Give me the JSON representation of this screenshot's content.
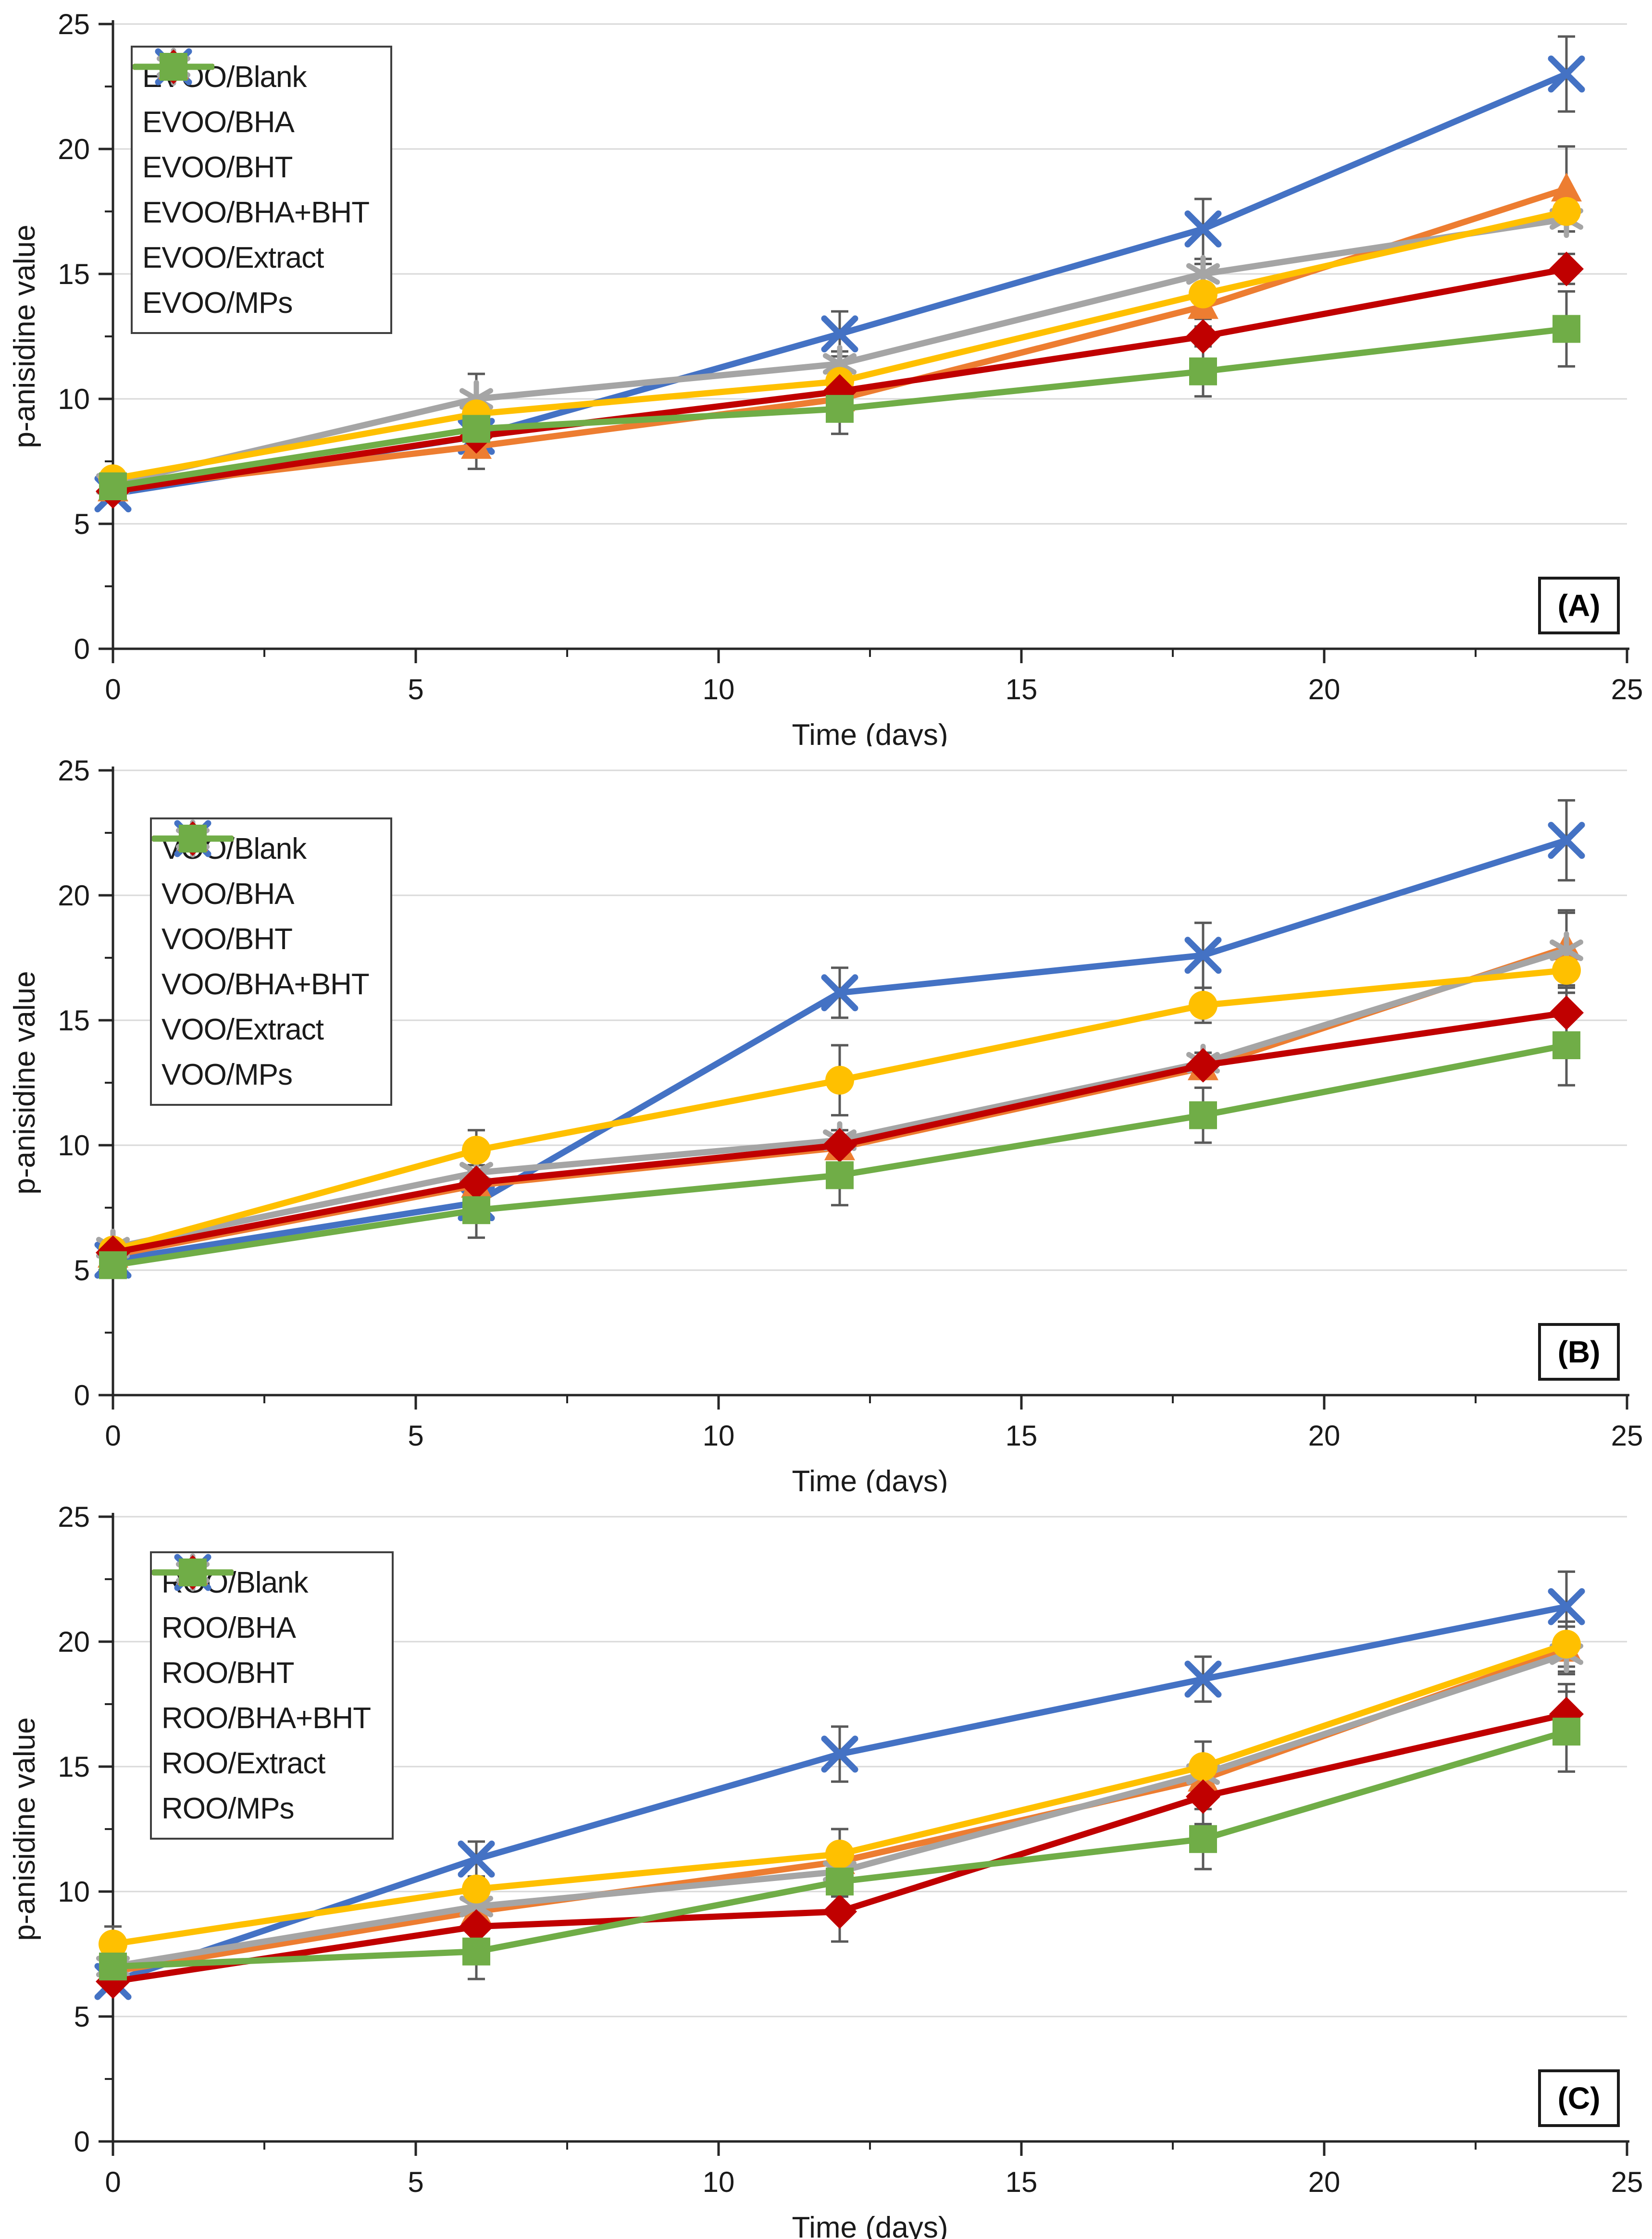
{
  "figure": {
    "x_axis_label": "Time (days)",
    "y_axis_label": "p-anisidine value",
    "x_ticks": [
      0,
      5,
      10,
      15,
      20,
      25
    ],
    "y_ticks": [
      0,
      5,
      10,
      15,
      20,
      25
    ],
    "axis_color": "#262626",
    "gridline_color": "#d9d9d9",
    "error_bar_color": "#595959",
    "grid": "horizontal-only",
    "legend_position": "top-left-inside",
    "series_colors": {
      "blank": "#4472C4",
      "bha": "#ED7D31",
      "bht": "#A5A5A5",
      "bha_bht": "#FFC000",
      "extract": "#C00000",
      "mps": "#70AD47"
    }
  },
  "chart_data": [
    {
      "type": "line",
      "panel_label": "(A)",
      "title": "",
      "xlabel": "Time (days)",
      "ylabel": "p-anisidine value",
      "xlim": [
        0,
        25
      ],
      "ylim": [
        0,
        25
      ],
      "x": [
        0,
        6,
        12,
        18,
        24
      ],
      "series": [
        {
          "name": "EVOO/Blank",
          "color": "#4472C4",
          "marker": "x",
          "values": [
            6.2,
            8.5,
            12.6,
            16.8,
            23.0
          ],
          "err": [
            0.2,
            0.3,
            0.9,
            1.2,
            1.5
          ]
        },
        {
          "name": "EVOO/BHA",
          "color": "#ED7D31",
          "marker": "triangle",
          "values": [
            6.4,
            8.1,
            10.0,
            13.7,
            18.4
          ],
          "err": [
            0.2,
            0.9,
            0.4,
            0.5,
            1.7
          ]
        },
        {
          "name": "EVOO/BHT",
          "color": "#A5A5A5",
          "marker": "asterisk",
          "values": [
            6.6,
            10.0,
            11.4,
            15.0,
            17.2
          ],
          "err": [
            0.3,
            1.0,
            0.5,
            0.4,
            0.5
          ]
        },
        {
          "name": "EVOO/BHA+BHT",
          "color": "#FFC000",
          "marker": "circle",
          "values": [
            6.8,
            9.4,
            10.7,
            14.2,
            17.5
          ],
          "err": [
            0.3,
            0.4,
            0.4,
            0.4,
            0.5
          ]
        },
        {
          "name": "EVOO/Extract",
          "color": "#C00000",
          "marker": "diamond",
          "values": [
            6.3,
            8.5,
            10.3,
            12.5,
            15.2
          ],
          "err": [
            0.2,
            0.3,
            0.3,
            0.4,
            0.6
          ]
        },
        {
          "name": "EVOO/MPs",
          "color": "#70AD47",
          "marker": "square",
          "values": [
            6.5,
            8.8,
            9.6,
            11.1,
            12.8
          ],
          "err": [
            0.3,
            0.4,
            1.0,
            1.0,
            1.5
          ]
        }
      ]
    },
    {
      "type": "line",
      "panel_label": "(B)",
      "title": "",
      "xlabel": "Time (days)",
      "ylabel": "p-anisidine value",
      "xlim": [
        0,
        25
      ],
      "ylim": [
        0,
        25
      ],
      "x": [
        0,
        6,
        12,
        18,
        24
      ],
      "series": [
        {
          "name": "VOO/Blank",
          "color": "#4472C4",
          "marker": "x",
          "values": [
            5.4,
            7.7,
            16.1,
            17.6,
            22.2
          ],
          "err": [
            0.2,
            0.3,
            1.0,
            1.3,
            1.6
          ]
        },
        {
          "name": "VOO/BHA",
          "color": "#ED7D31",
          "marker": "triangle",
          "values": [
            5.6,
            8.4,
            9.9,
            13.1,
            17.9
          ],
          "err": [
            0.2,
            0.3,
            0.4,
            0.4,
            1.5
          ]
        },
        {
          "name": "VOO/BHT",
          "color": "#A5A5A5",
          "marker": "asterisk",
          "values": [
            5.9,
            8.9,
            10.2,
            13.3,
            17.8
          ],
          "err": [
            0.2,
            0.3,
            0.4,
            0.4,
            1.5
          ]
        },
        {
          "name": "VOO/BHA+BHT",
          "color": "#FFC000",
          "marker": "circle",
          "values": [
            5.8,
            9.8,
            12.6,
            15.6,
            17.0
          ],
          "err": [
            0.2,
            0.8,
            1.4,
            0.7,
            0.9
          ]
        },
        {
          "name": "VOO/Extract",
          "color": "#C00000",
          "marker": "diamond",
          "values": [
            5.7,
            8.5,
            10.0,
            13.2,
            15.3
          ],
          "err": [
            0.2,
            0.3,
            0.4,
            0.5,
            0.8
          ]
        },
        {
          "name": "VOO/MPs",
          "color": "#70AD47",
          "marker": "square",
          "values": [
            5.2,
            7.4,
            8.8,
            11.2,
            14.0
          ],
          "err": [
            0.2,
            1.1,
            1.2,
            1.1,
            1.6
          ]
        }
      ]
    },
    {
      "type": "line",
      "panel_label": "(C)",
      "title": "",
      "xlabel": "Time (days)",
      "ylabel": "p-anisidine value",
      "xlim": [
        0,
        25
      ],
      "ylim": [
        0,
        25
      ],
      "x": [
        0,
        6,
        12,
        18,
        24
      ],
      "series": [
        {
          "name": "ROO/Blank",
          "color": "#4472C4",
          "marker": "x",
          "values": [
            6.4,
            11.3,
            15.5,
            18.5,
            21.4
          ],
          "err": [
            0.2,
            0.7,
            1.1,
            0.9,
            1.4
          ]
        },
        {
          "name": "ROO/BHA",
          "color": "#ED7D31",
          "marker": "triangle",
          "values": [
            6.8,
            9.2,
            11.2,
            14.5,
            19.7
          ],
          "err": [
            0.2,
            0.4,
            0.5,
            0.5,
            0.9
          ]
        },
        {
          "name": "ROO/BHT",
          "color": "#A5A5A5",
          "marker": "asterisk",
          "values": [
            7.0,
            9.4,
            10.8,
            14.7,
            19.5
          ],
          "err": [
            0.2,
            0.4,
            0.5,
            0.5,
            0.8
          ]
        },
        {
          "name": "ROO/BHA+BHT",
          "color": "#FFC000",
          "marker": "circle",
          "values": [
            7.9,
            10.1,
            11.5,
            15.0,
            19.9
          ],
          "err": [
            0.7,
            0.5,
            1.0,
            1.0,
            0.9
          ]
        },
        {
          "name": "ROO/Extract",
          "color": "#C00000",
          "marker": "diamond",
          "values": [
            6.4,
            8.6,
            9.2,
            13.8,
            17.1
          ],
          "err": [
            0.2,
            0.3,
            1.2,
            1.1,
            1.2
          ]
        },
        {
          "name": "ROO/MPs",
          "color": "#70AD47",
          "marker": "square",
          "values": [
            7.0,
            7.6,
            10.4,
            12.1,
            16.4
          ],
          "err": [
            0.3,
            1.1,
            0.6,
            1.2,
            1.6
          ]
        }
      ]
    }
  ]
}
